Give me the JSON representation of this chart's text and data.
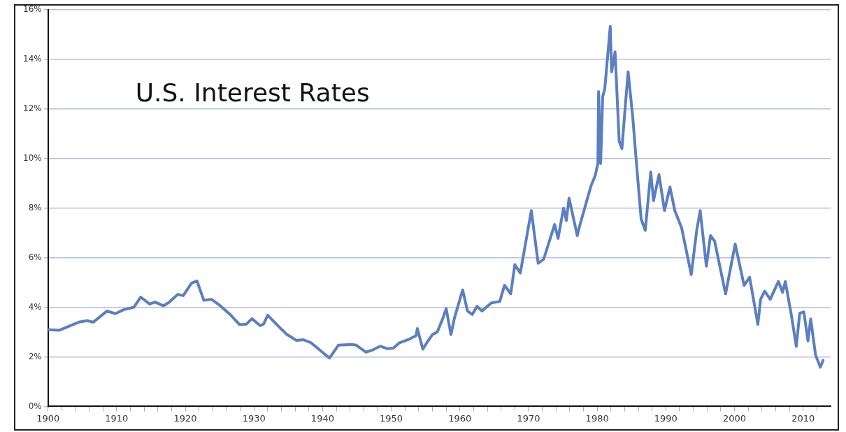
{
  "chart_data": {
    "type": "line",
    "title": "U.S. Interest Rates",
    "x": [
      1900,
      1901.6,
      1904.5,
      1905.7,
      1906.6,
      1908.6,
      1909.8,
      1911,
      1912.5,
      1913.5,
      1914.8,
      1915.6,
      1916.8,
      1917.6,
      1918.9,
      1919.7,
      1920.9,
      1921.7,
      1922.7,
      1923.8,
      1925,
      1926.6,
      1927.9,
      1928.9,
      1929.7,
      1930.9,
      1931.4,
      1932,
      1933.4,
      1934.8,
      1936.2,
      1937.2,
      1938.3,
      1941,
      1942.3,
      1944.2,
      1944.9,
      1946.3,
      1947.3,
      1948.4,
      1949.4,
      1950.3,
      1951.2,
      1952.6,
      1953.6,
      1953.8,
      1954.6,
      1955.3,
      1956,
      1956.7,
      1957.4,
      1958,
      1958.7,
      1959.2,
      1960.4,
      1961.1,
      1961.8,
      1962.5,
      1963.2,
      1964.6,
      1965.8,
      1966.5,
      1967.4,
      1968,
      1968.8,
      1970.4,
      1971.4,
      1972.2,
      1973.8,
      1974.3,
      1975.1,
      1975.5,
      1975.9,
      1977.1,
      1977.5,
      1979.1,
      1979.7,
      1980.1,
      1980.2,
      1980.5,
      1980.8,
      1981.1,
      1981.9,
      1982.1,
      1982.6,
      1983.2,
      1983.6,
      1984,
      1984.5,
      1985.2,
      1985.6,
      1986.4,
      1987,
      1987.8,
      1988.2,
      1989,
      1989.8,
      1990.6,
      1991.3,
      1992.3,
      1993.7,
      1994.5,
      1995,
      1995.9,
      1996.5,
      1997.1,
      1998.7,
      2000.1,
      2001.4,
      2002.2,
      2003.4,
      2003.8,
      2004.4,
      2005.2,
      2006.4,
      2007,
      2007.4,
      2008.3,
      2009,
      2009.5,
      2010.1,
      2010.7,
      2011.1,
      2011.8,
      2012.5,
      2012.9
    ],
    "series": [
      {
        "color": "#5b7fbf",
        "values": [
          3.1,
          3.07,
          3.4,
          3.46,
          3.4,
          3.85,
          3.74,
          3.9,
          4.0,
          4.41,
          4.13,
          4.21,
          4.06,
          4.19,
          4.52,
          4.47,
          4.97,
          5.06,
          4.28,
          4.32,
          4.08,
          3.69,
          3.3,
          3.32,
          3.54,
          3.26,
          3.32,
          3.68,
          3.28,
          2.9,
          2.66,
          2.69,
          2.57,
          1.95,
          2.47,
          2.5,
          2.47,
          2.19,
          2.28,
          2.43,
          2.33,
          2.35,
          2.57,
          2.71,
          2.85,
          3.14,
          2.31,
          2.62,
          2.9,
          3.0,
          3.47,
          3.94,
          2.9,
          3.56,
          4.7,
          3.85,
          3.71,
          4.04,
          3.85,
          4.18,
          4.23,
          4.89,
          4.54,
          5.72,
          5.38,
          7.9,
          5.77,
          5.94,
          7.34,
          6.78,
          8.0,
          7.5,
          8.4,
          6.89,
          7.34,
          8.9,
          9.3,
          9.8,
          12.7,
          9.8,
          12.5,
          12.8,
          15.33,
          13.5,
          14.3,
          10.7,
          10.4,
          11.8,
          13.5,
          11.6,
          10.2,
          7.56,
          7.1,
          9.46,
          8.3,
          9.35,
          7.9,
          8.85,
          7.9,
          7.2,
          5.32,
          7.11,
          7.9,
          5.66,
          6.89,
          6.67,
          4.54,
          6.55,
          4.88,
          5.21,
          3.31,
          4.32,
          4.65,
          4.32,
          5.04,
          4.6,
          5.04,
          3.65,
          2.42,
          3.76,
          3.81,
          2.64,
          3.53,
          2.08,
          1.58,
          1.86
        ]
      }
    ],
    "xlim": [
      1900,
      2014
    ],
    "xticks": [
      1900,
      {
        "value": 1902,
        "label": null
      },
      {
        "value": 1904,
        "label": null
      },
      {
        "value": 1906,
        "label": null
      },
      {
        "value": 1908,
        "label": null
      },
      1910,
      {
        "value": 1912,
        "label": null
      },
      {
        "value": 1914,
        "label": null
      },
      {
        "value": 1916,
        "label": null
      },
      {
        "value": 1918,
        "label": null
      },
      1920,
      {
        "value": 1922,
        "label": null
      },
      {
        "value": 1924,
        "label": null
      },
      {
        "value": 1926,
        "label": null
      },
      {
        "value": 1928,
        "label": null
      },
      1930,
      {
        "value": 1932,
        "label": null
      },
      {
        "value": 1934,
        "label": null
      },
      {
        "value": 1936,
        "label": null
      },
      {
        "value": 1938,
        "label": null
      },
      1940,
      {
        "value": 1942,
        "label": null
      },
      {
        "value": 1944,
        "label": null
      },
      {
        "value": 1946,
        "label": null
      },
      {
        "value": 1948,
        "label": null
      },
      1950,
      {
        "value": 1952,
        "label": null
      },
      {
        "value": 1954,
        "label": null
      },
      {
        "value": 1956,
        "label": null
      },
      {
        "value": 1958,
        "label": null
      },
      1960,
      {
        "value": 1962,
        "label": null
      },
      {
        "value": 1964,
        "label": null
      },
      {
        "value": 1966,
        "label": null
      },
      {
        "value": 1968,
        "label": null
      },
      1970,
      {
        "value": 1972,
        "label": null
      },
      {
        "value": 1974,
        "label": null
      },
      {
        "value": 1976,
        "label": null
      },
      {
        "value": 1978,
        "label": null
      },
      1980,
      {
        "value": 1982,
        "label": null
      },
      {
        "value": 1984,
        "label": null
      },
      {
        "value": 1986,
        "label": null
      },
      {
        "value": 1988,
        "label": null
      },
      1990,
      {
        "value": 1992,
        "label": null
      },
      {
        "value": 1994,
        "label": null
      },
      {
        "value": 1996,
        "label": null
      },
      {
        "value": 1998,
        "label": null
      },
      2000,
      {
        "value": 2002,
        "label": null
      },
      {
        "value": 2004,
        "label": null
      },
      {
        "value": 2006,
        "label": null
      },
      {
        "value": 2008,
        "label": null
      },
      2010,
      {
        "value": 2012,
        "label": null
      }
    ],
    "ylim": [
      0,
      16
    ],
    "yticks": [
      {
        "value": 0,
        "label": "0%"
      },
      {
        "value": 2,
        "label": "2%"
      },
      {
        "value": 4,
        "label": "4%"
      },
      {
        "value": 6,
        "label": "6%"
      },
      {
        "value": 8,
        "label": "8%"
      },
      {
        "value": 10,
        "label": "10%"
      },
      {
        "value": 12,
        "label": "12%"
      },
      {
        "value": 14,
        "label": "14%"
      },
      {
        "value": 16,
        "label": "16%"
      }
    ],
    "grid": "y",
    "legend": false,
    "marker": "none",
    "line_style": "solid"
  }
}
